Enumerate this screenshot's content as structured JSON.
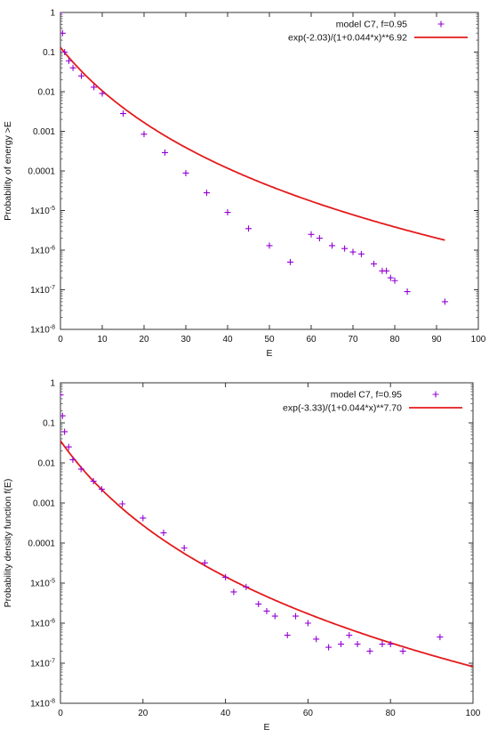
{
  "chart_data": [
    {
      "type": "scatter",
      "title": "",
      "xlabel": "E",
      "ylabel": "Probability of energy >E",
      "xlim": [
        0,
        100
      ],
      "ylim": [
        1e-08,
        1
      ],
      "yscale": "log",
      "grid": false,
      "legend_position": "top-right",
      "x_ticks": [
        0,
        10,
        20,
        30,
        40,
        50,
        60,
        70,
        80,
        90,
        100
      ],
      "y_tick_labels": [
        "1",
        "0.1",
        "0.01",
        "0.001",
        "0.0001",
        "1x10-5",
        "1x10-6",
        "1x10-7",
        "1x10-8"
      ],
      "series": [
        {
          "name": "model C7, f=0.95",
          "kind": "points",
          "marker": "+",
          "color": "#9400d3",
          "x": [
            0,
            0.5,
            1,
            2,
            3,
            5,
            8,
            10,
            15,
            20,
            25,
            30,
            35,
            40,
            45,
            50,
            55,
            60,
            62,
            65,
            68,
            70,
            72,
            75,
            77,
            78,
            79,
            80,
            83,
            92
          ],
          "y": [
            1.0,
            0.3,
            0.1,
            0.06,
            0.04,
            0.025,
            0.013,
            0.009,
            0.0028,
            0.00085,
            0.00029,
            8.8e-05,
            2.8e-05,
            9e-06,
            3.5e-06,
            1.3e-06,
            5e-07,
            2.5e-06,
            2e-06,
            1.3e-06,
            1.1e-06,
            9e-07,
            8e-07,
            4.5e-07,
            3e-07,
            3e-07,
            2e-07,
            1.7e-07,
            9e-08,
            5e-08
          ]
        },
        {
          "name": "exp(-2.03)/(1+0.044*x)**6.92",
          "kind": "line",
          "color": "#e41a1c",
          "formula": {
            "a": -2.03,
            "b": 0.044,
            "p": 6.92
          },
          "x_range": [
            0,
            92
          ]
        }
      ]
    },
    {
      "type": "scatter",
      "title": "",
      "xlabel": "E",
      "ylabel": "Probability density function f(E)",
      "xlim": [
        0,
        100
      ],
      "ylim": [
        1e-08,
        1
      ],
      "yscale": "log",
      "grid": false,
      "legend_position": "top-right",
      "x_ticks": [
        0,
        20,
        40,
        60,
        80,
        100
      ],
      "y_tick_labels": [
        "1",
        "0.1",
        "0.01",
        "0.001",
        "0.0001",
        "1x10-5",
        "1x10-6",
        "1x10-7",
        "1x10-8"
      ],
      "series": [
        {
          "name": "model C7, f=0.95",
          "kind": "points",
          "marker": "+",
          "color": "#9400d3",
          "x": [
            0,
            0.5,
            1,
            2,
            3,
            5,
            8,
            10,
            15,
            20,
            25,
            30,
            35,
            40,
            42,
            45,
            48,
            50,
            52,
            55,
            57,
            60,
            62,
            65,
            68,
            70,
            72,
            75,
            78,
            80,
            83,
            92
          ],
          "y": [
            0.5,
            0.15,
            0.06,
            0.025,
            0.012,
            0.007,
            0.0035,
            0.0022,
            0.00095,
            0.00042,
            0.00018,
            7.5e-05,
            3.2e-05,
            1.4e-05,
            6e-06,
            8e-06,
            3e-06,
            2e-06,
            1.5e-06,
            5e-07,
            1.5e-06,
            1e-06,
            4e-07,
            2.5e-07,
            3e-07,
            5e-07,
            3e-07,
            2e-07,
            3e-07,
            3e-07,
            2e-07,
            4.5e-07
          ]
        },
        {
          "name": "exp(-3.33)/(1+0.044*x)**7.70",
          "kind": "line",
          "color": "#e41a1c",
          "formula": {
            "a": -3.33,
            "b": 0.044,
            "p": 7.7
          },
          "x_range": [
            0,
            100
          ]
        }
      ]
    }
  ]
}
